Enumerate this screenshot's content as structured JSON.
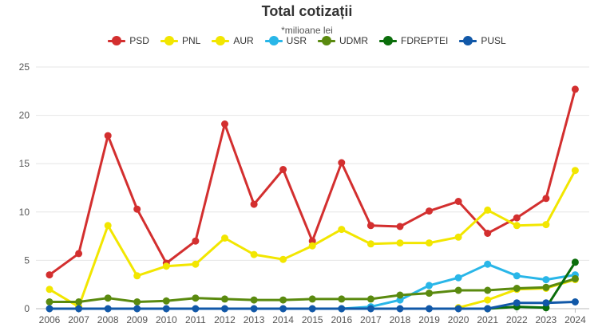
{
  "chart_data": {
    "type": "line",
    "title": "Total cotizații",
    "subtitle": "*milioane lei",
    "xlabel": "",
    "ylabel": "",
    "ylim": [
      0,
      25
    ],
    "yticks": [
      0,
      5,
      10,
      15,
      20,
      25
    ],
    "grid": true,
    "legend": "top",
    "categories": [
      "2006",
      "2007",
      "2008",
      "2009",
      "2010",
      "2011",
      "2012",
      "2013",
      "2014",
      "2015",
      "2016",
      "2017",
      "2018",
      "2019",
      "2020",
      "2021",
      "2022",
      "2023",
      "2024"
    ],
    "series": [
      {
        "name": "PSD",
        "color": "#d32f2f",
        "values": [
          3.5,
          5.7,
          17.9,
          10.3,
          4.7,
          7.0,
          19.1,
          10.8,
          14.4,
          7.0,
          15.1,
          8.6,
          8.5,
          10.1,
          11.1,
          7.8,
          9.4,
          11.4,
          22.7
        ]
      },
      {
        "name": "PNL",
        "color": "#f2e600",
        "values": [
          2.0,
          0.2,
          8.6,
          3.4,
          4.4,
          4.6,
          7.3,
          5.6,
          5.1,
          6.5,
          8.2,
          6.7,
          6.8,
          6.8,
          7.4,
          10.2,
          8.6,
          8.7,
          14.3
        ]
      },
      {
        "name": "AUR",
        "color": "#f2e600",
        "values": [
          null,
          null,
          null,
          null,
          null,
          null,
          null,
          null,
          null,
          null,
          null,
          null,
          null,
          null,
          0.1,
          0.9,
          2.0,
          2.1,
          3.0
        ]
      },
      {
        "name": "USR",
        "color": "#29b6e8",
        "values": [
          null,
          null,
          null,
          null,
          null,
          null,
          null,
          null,
          null,
          null,
          0.0,
          0.2,
          0.9,
          2.4,
          3.2,
          4.6,
          3.4,
          3.0,
          3.5
        ]
      },
      {
        "name": "UDMR",
        "color": "#5a8a0f",
        "values": [
          0.7,
          0.7,
          1.1,
          0.7,
          0.8,
          1.1,
          1.0,
          0.9,
          0.9,
          1.0,
          1.0,
          1.0,
          1.4,
          1.6,
          1.9,
          1.9,
          2.1,
          2.2,
          3.1
        ]
      },
      {
        "name": "FDREPTEI",
        "color": "#0b6e0b",
        "values": [
          null,
          null,
          null,
          null,
          null,
          null,
          null,
          null,
          null,
          null,
          null,
          null,
          null,
          null,
          null,
          0.0,
          0.2,
          0.1,
          4.8
        ]
      },
      {
        "name": "PUSL",
        "color": "#1158a8",
        "values": [
          0.0,
          0.0,
          0.0,
          0.0,
          0.0,
          0.0,
          0.0,
          0.0,
          0.0,
          0.0,
          0.0,
          0.0,
          0.0,
          0.0,
          0.0,
          0.0,
          0.6,
          0.6,
          0.7
        ]
      }
    ]
  }
}
